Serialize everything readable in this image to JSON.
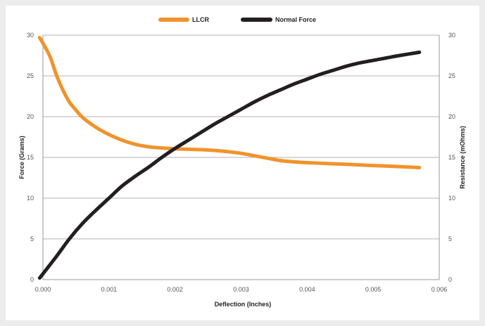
{
  "chart_data": {
    "type": "line",
    "xlabel": "Deflection (Inches)",
    "ylabel": "Force (Grams)",
    "y2label": "Resistance (mOhms)",
    "xlim": [
      0,
      0.006
    ],
    "ylim": [
      0,
      30
    ],
    "y2lim": [
      0,
      30
    ],
    "x_ticks": [
      "0.000",
      "0.001",
      "0.002",
      "0.003",
      "0.004",
      "0.005",
      "0.006"
    ],
    "y_ticks": [
      "0",
      "5",
      "10",
      "15",
      "20",
      "25",
      "30"
    ],
    "y2_ticks": [
      "0",
      "5",
      "10",
      "15",
      "20",
      "25",
      "30"
    ],
    "grid": true,
    "legend_position": "top-center",
    "series": [
      {
        "name": "LLCR",
        "color": "#f0932b",
        "axis": "right",
        "x": [
          -5e-05,
          0.0001,
          0.0002,
          0.0003,
          0.0004,
          0.0005,
          0.0006,
          0.0008,
          0.001,
          0.0012,
          0.0014,
          0.0016,
          0.0018,
          0.002,
          0.0022,
          0.0024,
          0.0026,
          0.0028,
          0.003,
          0.0032,
          0.0034,
          0.0036,
          0.0038,
          0.004,
          0.0043,
          0.0046,
          0.005,
          0.0053,
          0.0057
        ],
        "values": [
          29.7,
          27.5,
          25.2,
          23.3,
          21.8,
          20.8,
          19.9,
          18.7,
          17.8,
          17.1,
          16.6,
          16.3,
          16.15,
          16.05,
          16.0,
          15.95,
          15.85,
          15.7,
          15.5,
          15.2,
          14.9,
          14.6,
          14.45,
          14.35,
          14.25,
          14.15,
          14.0,
          13.9,
          13.75
        ]
      },
      {
        "name": "Normal Force",
        "color": "#231f20",
        "axis": "left",
        "x": [
          -5e-05,
          0.0002,
          0.0004,
          0.0006,
          0.0008,
          0.001,
          0.0012,
          0.0014,
          0.0016,
          0.0018,
          0.002,
          0.0022,
          0.0024,
          0.0026,
          0.0028,
          0.003,
          0.0032,
          0.0034,
          0.0036,
          0.0038,
          0.004,
          0.0042,
          0.0044,
          0.0046,
          0.0048,
          0.005,
          0.0052,
          0.0054,
          0.0057
        ],
        "values": [
          0.2,
          2.8,
          5.0,
          6.9,
          8.5,
          10.0,
          11.5,
          12.7,
          13.8,
          15.0,
          16.1,
          17.1,
          18.1,
          19.1,
          20.0,
          20.9,
          21.8,
          22.6,
          23.3,
          24.0,
          24.6,
          25.2,
          25.7,
          26.2,
          26.6,
          26.9,
          27.2,
          27.5,
          27.9
        ]
      }
    ]
  }
}
